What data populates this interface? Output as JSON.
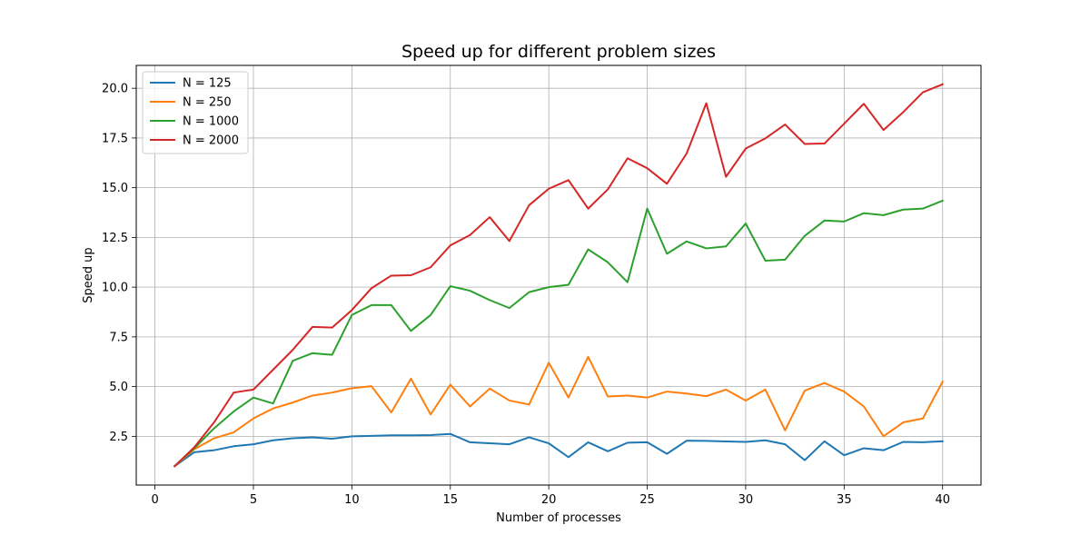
{
  "chart_data": {
    "type": "line",
    "title": "Speed up for different problem sizes",
    "xlabel": "Number of processes",
    "ylabel": "Speed up",
    "xlim": [
      -0.95,
      41.95
    ],
    "ylim": [
      0.05,
      21.15
    ],
    "xticks": [
      0,
      5,
      10,
      15,
      20,
      25,
      30,
      35,
      40
    ],
    "xtick_labels": [
      "0",
      "5",
      "10",
      "15",
      "20",
      "25",
      "30",
      "35",
      "40"
    ],
    "yticks": [
      2.5,
      5.0,
      7.5,
      10.0,
      12.5,
      15.0,
      17.5,
      20.0
    ],
    "ytick_labels": [
      "2.5",
      "5.0",
      "7.5",
      "10.0",
      "12.5",
      "15.0",
      "17.5",
      "20.0"
    ],
    "grid": true,
    "legend_position": "top-left",
    "x": [
      1,
      2,
      3,
      4,
      5,
      6,
      7,
      8,
      9,
      10,
      11,
      12,
      13,
      14,
      15,
      16,
      17,
      18,
      19,
      20,
      21,
      22,
      23,
      24,
      25,
      26,
      27,
      28,
      29,
      30,
      31,
      32,
      33,
      34,
      35,
      36,
      37,
      38,
      39,
      40
    ],
    "series": [
      {
        "name": "N = 125",
        "color": "#1f77b4",
        "values": [
          1.0,
          1.7,
          1.8,
          2.0,
          2.1,
          2.3,
          2.4,
          2.45,
          2.38,
          2.5,
          2.52,
          2.55,
          2.55,
          2.56,
          2.62,
          2.2,
          2.15,
          2.1,
          2.45,
          2.15,
          1.45,
          2.2,
          1.75,
          2.18,
          2.2,
          1.62,
          2.28,
          2.27,
          2.24,
          2.22,
          2.3,
          2.1,
          1.3,
          2.25,
          1.55,
          1.9,
          1.8,
          2.22,
          2.2,
          2.25
        ]
      },
      {
        "name": "N = 250",
        "color": "#ff7f0e",
        "values": [
          1.0,
          1.85,
          2.4,
          2.7,
          3.4,
          3.9,
          4.2,
          4.55,
          4.7,
          4.92,
          5.02,
          3.7,
          5.4,
          3.6,
          5.1,
          4.0,
          4.9,
          4.3,
          4.1,
          6.2,
          4.45,
          6.5,
          4.5,
          4.55,
          4.45,
          4.75,
          4.65,
          4.52,
          4.85,
          4.3,
          4.85,
          2.8,
          4.8,
          5.18,
          4.75,
          4.0,
          2.5,
          3.2,
          3.4,
          5.25
        ]
      },
      {
        "name": "N = 1000",
        "color": "#2ca02c",
        "values": [
          1.0,
          1.9,
          2.9,
          3.75,
          4.45,
          4.15,
          6.3,
          6.68,
          6.6,
          8.6,
          9.1,
          9.1,
          7.8,
          8.6,
          10.05,
          9.82,
          9.35,
          8.95,
          9.75,
          10.0,
          10.12,
          11.9,
          11.25,
          10.25,
          13.95,
          11.68,
          12.3,
          11.95,
          12.05,
          13.2,
          11.33,
          11.38,
          12.58,
          13.35,
          13.3,
          13.72,
          13.62,
          13.9,
          13.95,
          14.35
        ]
      },
      {
        "name": "N = 2000",
        "color": "#d62728",
        "values": [
          1.0,
          1.95,
          3.2,
          4.7,
          4.85,
          5.85,
          6.85,
          8.0,
          7.97,
          8.85,
          9.95,
          10.58,
          10.6,
          11.0,
          12.1,
          12.62,
          13.52,
          12.32,
          14.12,
          14.95,
          15.38,
          13.95,
          14.92,
          16.48,
          15.98,
          15.2,
          16.72,
          19.25,
          15.55,
          16.97,
          17.48,
          18.18,
          17.2,
          17.22,
          18.22,
          19.22,
          17.9,
          18.8,
          19.8,
          20.2
        ]
      }
    ]
  }
}
